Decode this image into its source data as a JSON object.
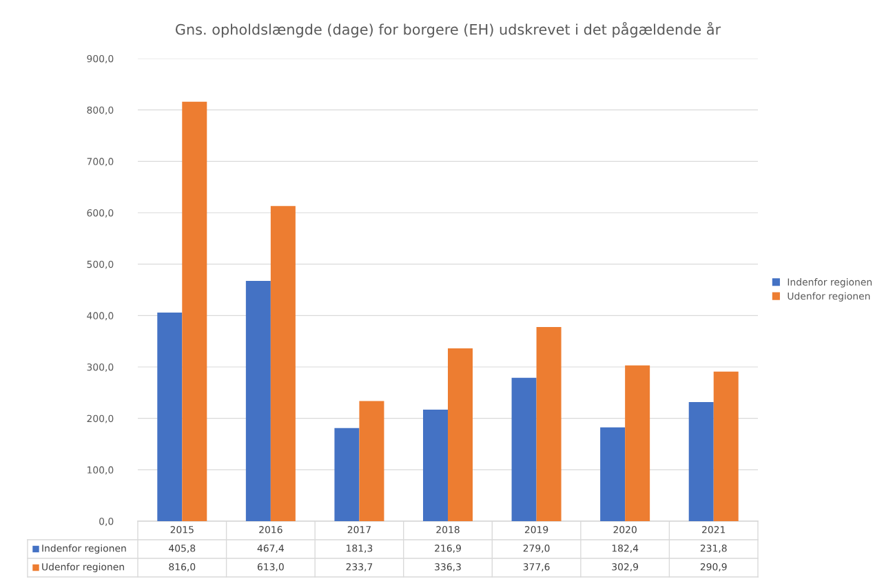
{
  "chart_data": {
    "type": "bar",
    "title": "Gns. opholdslængde (dage) for borgere (EH) udskrevet i det pågældende år",
    "categories": [
      "2015",
      "2016",
      "2017",
      "2018",
      "2019",
      "2020",
      "2021"
    ],
    "series": [
      {
        "name": "Indenfor regionen",
        "color": "#4472c4",
        "values": [
          405.8,
          467.4,
          181.3,
          216.9,
          279.0,
          182.4,
          231.8
        ],
        "value_labels": [
          "405,8",
          "467,4",
          "181,3",
          "216,9",
          "279,0",
          "182,4",
          "231,8"
        ]
      },
      {
        "name": "Udenfor regionen",
        "color": "#ed7d31",
        "values": [
          816.0,
          613.0,
          233.7,
          336.3,
          377.6,
          302.9,
          290.9
        ],
        "value_labels": [
          "816,0",
          "613,0",
          "233,7",
          "336,3",
          "377,6",
          "302,9",
          "290,9"
        ]
      }
    ],
    "ylim": [
      0,
      900
    ],
    "yticks": [
      {
        "value": 0,
        "label": "0,0"
      },
      {
        "value": 100,
        "label": "100,0"
      },
      {
        "value": 200,
        "label": "200,0"
      },
      {
        "value": 300,
        "label": "300,0"
      },
      {
        "value": 400,
        "label": "400,0"
      },
      {
        "value": 500,
        "label": "500,0"
      },
      {
        "value": 600,
        "label": "600,0"
      },
      {
        "value": 700,
        "label": "700,0"
      },
      {
        "value": 800,
        "label": "800,0"
      },
      {
        "value": 900,
        "label": "900,0"
      }
    ],
    "grid": "y",
    "legend": "right"
  }
}
